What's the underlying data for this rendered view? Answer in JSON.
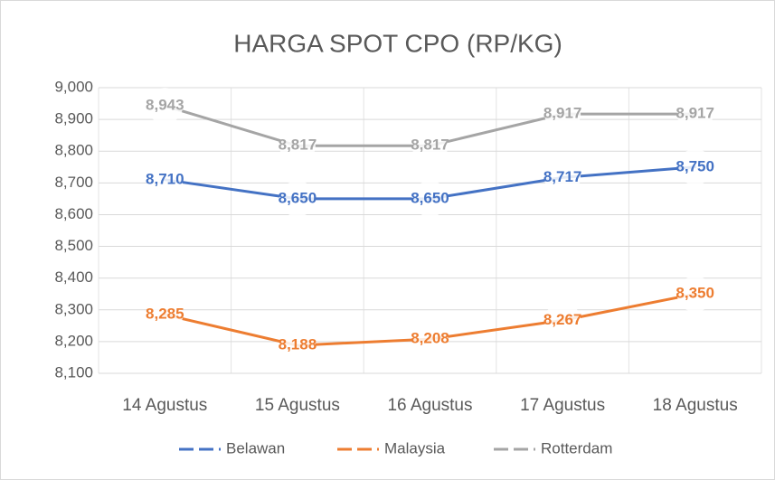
{
  "chart_data": {
    "type": "line",
    "title": "HARGA SPOT CPO (RP/KG)",
    "categories": [
      "14 Agustus",
      "15 Agustus",
      "16 Agustus",
      "17 Agustus",
      "18 Agustus"
    ],
    "series": [
      {
        "name": "Belawan",
        "color": "#4472c4",
        "values": [
          8710,
          8650,
          8650,
          8717,
          8750
        ],
        "value_labels": [
          "8,710",
          "8,650",
          "8,650",
          "8,717",
          "8,750"
        ]
      },
      {
        "name": "Malaysia",
        "color": "#ed7d31",
        "values": [
          8285,
          8188,
          8208,
          8267,
          8350
        ],
        "value_labels": [
          "8,285",
          "8,188",
          "8,208",
          "8,267",
          "8,350"
        ]
      },
      {
        "name": "Rotterdam",
        "color": "#a5a5a5",
        "values": [
          8943,
          8817,
          8817,
          8917,
          8917
        ],
        "value_labels": [
          "8,943",
          "8,817",
          "8,817",
          "8,917",
          "8,917"
        ]
      }
    ],
    "ylim": [
      8100,
      9000
    ],
    "yticks": [
      {
        "value": 8100,
        "label": "8,100"
      },
      {
        "value": 8200,
        "label": "8,200"
      },
      {
        "value": 8300,
        "label": "8,300"
      },
      {
        "value": 8400,
        "label": "8,400"
      },
      {
        "value": 8500,
        "label": "8,500"
      },
      {
        "value": 8600,
        "label": "8,600"
      },
      {
        "value": 8700,
        "label": "8,700"
      },
      {
        "value": 8800,
        "label": "8,800"
      },
      {
        "value": 8900,
        "label": "8,900"
      },
      {
        "value": 9000,
        "label": "9,000"
      }
    ],
    "grid": true,
    "legend": "bottom"
  }
}
